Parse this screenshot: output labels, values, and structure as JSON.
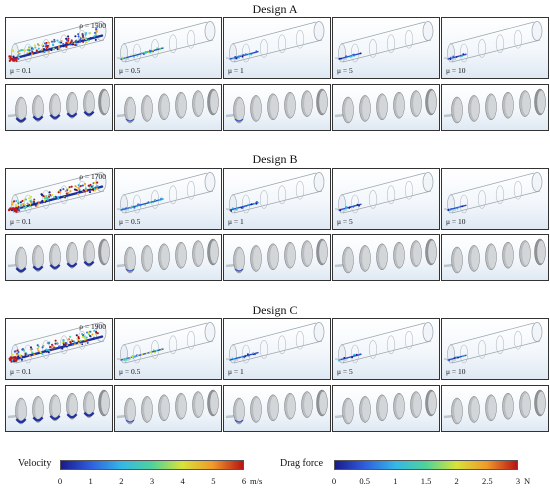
{
  "designs": [
    {
      "title": "Design A",
      "rho": "ρ = 1500"
    },
    {
      "title": "Design B",
      "rho": "ρ = 1700"
    },
    {
      "title": "Design C",
      "rho": "ρ = 1900"
    }
  ],
  "mu_labels": [
    "μ = 0.1",
    "μ = 0.5",
    "μ = 1",
    "μ = 5",
    "μ = 10"
  ],
  "velocity_bar": {
    "title": "Velocity",
    "ticks": [
      "0",
      "1",
      "2",
      "3",
      "4",
      "5",
      "6"
    ],
    "unit": "m/s"
  },
  "drag_bar": {
    "title": "Drag force",
    "ticks": [
      "0",
      "0.5",
      "1",
      "1.5",
      "2",
      "2.5",
      "3"
    ],
    "unit": "N"
  },
  "colormap": [
    "#1a1a8c",
    "#2f5fe0",
    "#34b8e6",
    "#4fd29a",
    "#d8e33a",
    "#f09a2a",
    "#b81414"
  ]
}
